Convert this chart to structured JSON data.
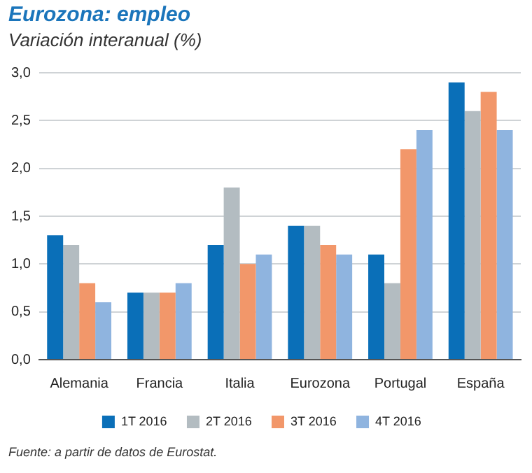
{
  "chart_data": {
    "type": "bar",
    "title": "Eurozona: empleo",
    "subtitle": "Variación interanual (%)",
    "categories": [
      "Alemania",
      "Francia",
      "Italia",
      "Eurozona",
      "Portugal",
      "España"
    ],
    "series": [
      {
        "name": "1T 2016",
        "color": "#0a6fb8",
        "values": [
          1.3,
          0.7,
          1.2,
          1.4,
          1.1,
          2.9
        ]
      },
      {
        "name": "2T 2016",
        "color": "#b3bcc1",
        "values": [
          1.2,
          0.7,
          1.8,
          1.4,
          0.8,
          2.6
        ]
      },
      {
        "name": "3T 2016",
        "color": "#f2976a",
        "values": [
          0.8,
          0.7,
          1.0,
          1.2,
          2.2,
          2.8
        ]
      },
      {
        "name": "4T 2016",
        "color": "#8fb4df",
        "values": [
          0.6,
          0.8,
          1.1,
          1.1,
          2.4,
          2.4
        ]
      }
    ],
    "ylim": [
      0,
      3
    ],
    "yticks": [
      {
        "value": 0,
        "label": "0,0"
      },
      {
        "value": 0.5,
        "label": "0,5"
      },
      {
        "value": 1,
        "label": "1,0"
      },
      {
        "value": 1.5,
        "label": "1,5"
      },
      {
        "value": 2,
        "label": "2,0"
      },
      {
        "value": 2.5,
        "label": "2,5"
      },
      {
        "value": 3,
        "label": "3,0"
      }
    ],
    "grid": "y",
    "legend": "bottom",
    "annotations": [
      "Fuente: a partir de datos de Eurostat."
    ]
  }
}
